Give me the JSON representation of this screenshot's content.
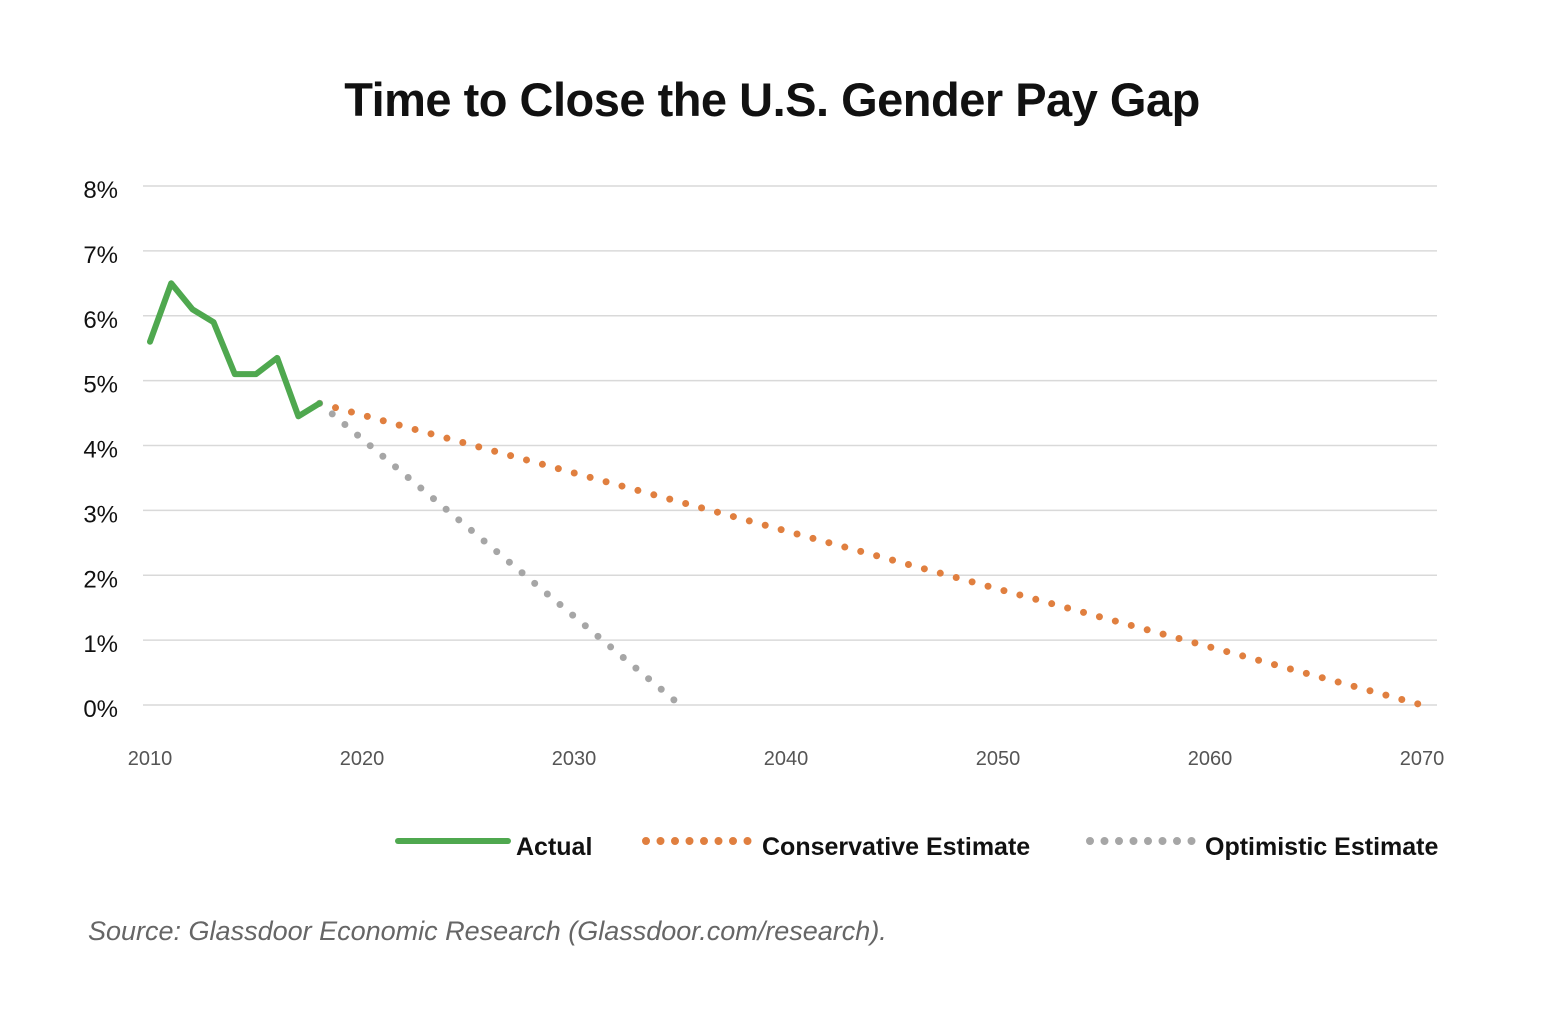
{
  "chart_data": {
    "type": "line",
    "title": "Time to Close the U.S. Gender Pay Gap",
    "xlabel": "",
    "ylabel": "",
    "xlim": [
      2010,
      2070
    ],
    "ylim": [
      0,
      8
    ],
    "x_ticks": [
      "2010",
      "2020",
      "2030",
      "2040",
      "2050",
      "2060",
      "2070"
    ],
    "y_ticks": [
      "0%",
      "1%",
      "2%",
      "3%",
      "4%",
      "5%",
      "6%",
      "7%",
      "8%"
    ],
    "grid": true,
    "legend_position": "bottom-right",
    "series": [
      {
        "name": "Actual",
        "color": "#4fa84f",
        "style": "solid",
        "x": [
          2010,
          2011,
          2012,
          2013,
          2014,
          2015,
          2016,
          2017,
          2018
        ],
        "y": [
          5.6,
          6.5,
          6.1,
          5.9,
          5.1,
          5.1,
          5.35,
          4.45,
          4.65
        ]
      },
      {
        "name": "Conservative Estimate",
        "color": "#e07f3f",
        "style": "dotted",
        "x": [
          2018,
          2070
        ],
        "y": [
          4.65,
          0
        ]
      },
      {
        "name": "Optimistic Estimate",
        "color": "#a6a6a6",
        "style": "dotted",
        "x": [
          2018,
          2035
        ],
        "y": [
          4.65,
          0
        ]
      }
    ]
  },
  "source": "Source: Glassdoor Economic Research (Glassdoor.com/research)."
}
